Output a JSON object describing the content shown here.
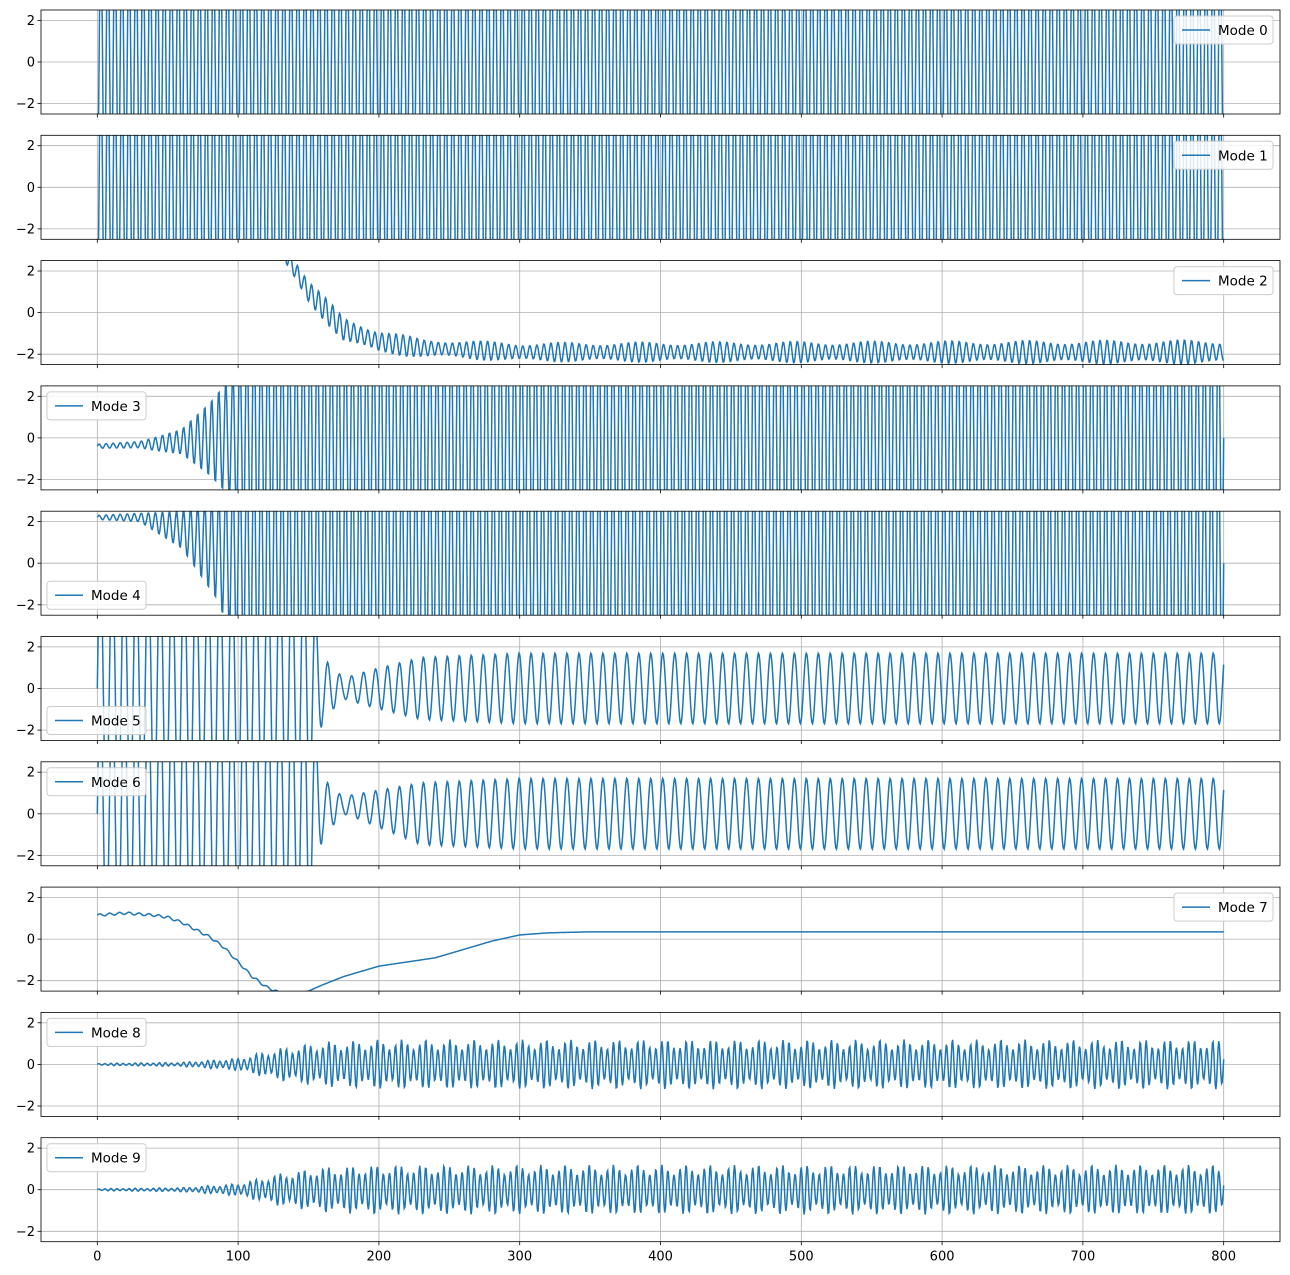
{
  "chart_data": {
    "type": "line",
    "layout": "10 stacked subplots sharing x-axis",
    "grid": true,
    "line_color": "#1f77b4",
    "xlim": [
      -40,
      840
    ],
    "ylim": [
      -2.5,
      2.5
    ],
    "x_ticks": [
      0,
      100,
      200,
      300,
      400,
      500,
      600,
      700,
      800
    ],
    "y_ticks": [
      -2,
      0,
      2
    ],
    "x_tick_labels": [
      "0",
      "100",
      "200",
      "300",
      "400",
      "500",
      "600",
      "700",
      "800"
    ],
    "y_tick_labels": [
      "−2",
      "0",
      "2"
    ],
    "x_range": [
      0,
      800
    ],
    "series": [
      {
        "name": "Mode 0",
        "legend": "upper right",
        "period": 5.0,
        "amplitude": 6.0,
        "center": 0,
        "start_value": -2.5,
        "description": "large-amplitude fast oscillation exceeding y-limits across whole range"
      },
      {
        "name": "Mode 1",
        "legend": "upper right",
        "period": 5.0,
        "amplitude": 6.0,
        "center": 0,
        "start_value": -2.5,
        "description": "large-amplitude fast oscillation exceeding y-limits across whole range"
      },
      {
        "name": "Mode 2",
        "legend": "upper right",
        "period": 5.0,
        "description": "oscillating decay from above 2.5 (x≈130) to a band of about -2.5 to -1.2 after x≈230",
        "envelope_center": [
          [
            0,
            8
          ],
          [
            130,
            3.2
          ],
          [
            150,
            1.0
          ],
          [
            175,
            -0.8
          ],
          [
            200,
            -1.4
          ],
          [
            230,
            -1.7
          ],
          [
            300,
            -1.9
          ],
          [
            800,
            -1.9
          ]
        ],
        "envelope_amp": [
          [
            0,
            0.6
          ],
          [
            130,
            0.6
          ],
          [
            200,
            0.6
          ],
          [
            230,
            0.45
          ],
          [
            800,
            0.6
          ]
        ]
      },
      {
        "name": "Mode 3",
        "legend": "upper left",
        "period": 5.0,
        "description": "small oscillation near -0.4 growing until it exceeds y-limits after x≈90",
        "envelope_center": [
          [
            0,
            -0.4
          ],
          [
            40,
            -0.3
          ],
          [
            90,
            0.0
          ],
          [
            800,
            0.0
          ]
        ],
        "envelope_amp": [
          [
            0,
            0.1
          ],
          [
            30,
            0.15
          ],
          [
            60,
            0.6
          ],
          [
            80,
            1.8
          ],
          [
            95,
            3.0
          ],
          [
            110,
            6.0
          ],
          [
            800,
            6.0
          ]
        ]
      },
      {
        "name": "Mode 4",
        "legend": "lower left",
        "period": 5.0,
        "description": "oscillation near 2.2 drifting downward and growing until it exceeds y-limits after x≈90",
        "envelope_center": [
          [
            0,
            2.2
          ],
          [
            30,
            2.2
          ],
          [
            60,
            1.6
          ],
          [
            90,
            0.5
          ],
          [
            120,
            0.0
          ],
          [
            800,
            0.0
          ]
        ],
        "envelope_amp": [
          [
            0,
            0.1
          ],
          [
            30,
            0.2
          ],
          [
            60,
            0.9
          ],
          [
            85,
            2.5
          ],
          [
            110,
            6.0
          ],
          [
            800,
            6.0
          ]
        ]
      },
      {
        "name": "Mode 5",
        "legend": "lower left",
        "period": 8.5,
        "description": "oscillation exceeding y-limits until x≈155, brief small oscillation, then steady oscillation amplitude ≈1.7 about 0",
        "envelope_center": [
          [
            0,
            0
          ],
          [
            800,
            0
          ]
        ],
        "envelope_amp": [
          [
            0,
            6.0
          ],
          [
            150,
            6.0
          ],
          [
            160,
            1.5
          ],
          [
            175,
            0.5
          ],
          [
            195,
            0.9
          ],
          [
            230,
            1.5
          ],
          [
            300,
            1.7
          ],
          [
            800,
            1.7
          ]
        ]
      },
      {
        "name": "Mode 6",
        "legend": "upper left",
        "period": 8.5,
        "description": "oscillation exceeding y-limits until x≈155, brief small oscillation near 0.5, then steady oscillation amplitude ≈1.7 about 0",
        "envelope_center": [
          [
            0,
            0
          ],
          [
            155,
            0.3
          ],
          [
            180,
            0.4
          ],
          [
            230,
            0.0
          ],
          [
            800,
            0.0
          ]
        ],
        "envelope_amp": [
          [
            0,
            6.0
          ],
          [
            150,
            6.0
          ],
          [
            160,
            1.4
          ],
          [
            175,
            0.4
          ],
          [
            195,
            0.8
          ],
          [
            230,
            1.5
          ],
          [
            300,
            1.7
          ],
          [
            800,
            1.7
          ]
        ]
      },
      {
        "name": "Mode 7",
        "legend": "upper right",
        "description": "slow drift: starts 1.15, dips below -2.5 around x≈115–150, recovers and settles at 0.35 after x≈320",
        "points": [
          [
            0,
            1.15
          ],
          [
            10,
            1.2
          ],
          [
            20,
            1.25
          ],
          [
            30,
            1.2
          ],
          [
            40,
            1.15
          ],
          [
            50,
            1.05
          ],
          [
            60,
            0.8
          ],
          [
            70,
            0.45
          ],
          [
            80,
            0.1
          ],
          [
            90,
            -0.4
          ],
          [
            100,
            -1.1
          ],
          [
            110,
            -1.8
          ],
          [
            120,
            -2.3
          ],
          [
            130,
            -2.6
          ],
          [
            140,
            -2.6
          ],
          [
            150,
            -2.5
          ],
          [
            160,
            -2.2
          ],
          [
            175,
            -1.8
          ],
          [
            200,
            -1.3
          ],
          [
            220,
            -1.1
          ],
          [
            240,
            -0.9
          ],
          [
            260,
            -0.5
          ],
          [
            280,
            -0.1
          ],
          [
            300,
            0.2
          ],
          [
            320,
            0.3
          ],
          [
            350,
            0.35
          ],
          [
            800,
            0.35
          ]
        ]
      },
      {
        "name": "Mode 8",
        "legend": "upper left",
        "period": 4.3,
        "description": "flat near 0 then fast oscillation growing to amplitude ≈1.2",
        "envelope_center": [
          [
            0,
            0
          ],
          [
            800,
            0
          ]
        ],
        "envelope_amp": [
          [
            0,
            0.05
          ],
          [
            60,
            0.1
          ],
          [
            100,
            0.3
          ],
          [
            130,
            0.8
          ],
          [
            160,
            1.1
          ],
          [
            200,
            1.2
          ],
          [
            800,
            1.2
          ]
        ]
      },
      {
        "name": "Mode 9",
        "legend": "upper left",
        "period": 4.3,
        "description": "flat near 0 then fast oscillation growing to amplitude ≈1.2",
        "envelope_center": [
          [
            0,
            0
          ],
          [
            800,
            0
          ]
        ],
        "envelope_amp": [
          [
            0,
            0.05
          ],
          [
            60,
            0.1
          ],
          [
            100,
            0.3
          ],
          [
            130,
            0.8
          ],
          [
            160,
            1.1
          ],
          [
            200,
            1.2
          ],
          [
            800,
            1.2
          ]
        ]
      }
    ]
  }
}
